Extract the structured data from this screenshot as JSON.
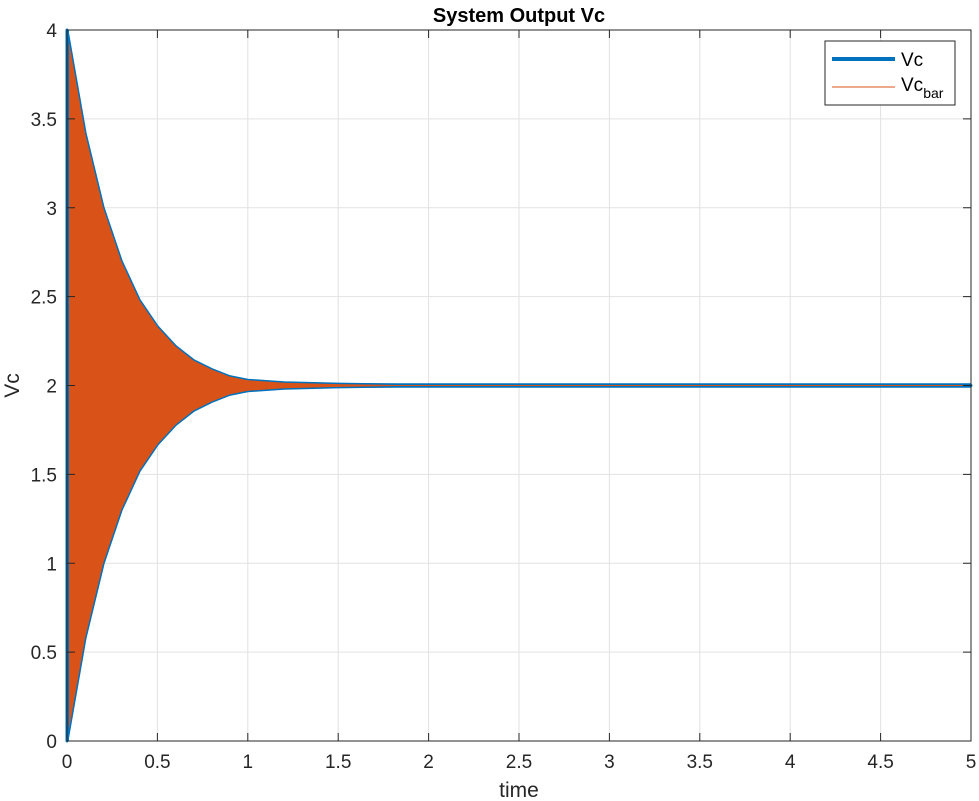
{
  "chart_data": {
    "type": "line",
    "title": "System Output Vc",
    "xlabel": "time",
    "ylabel": "Vc",
    "xlim": [
      0,
      5
    ],
    "ylim": [
      0,
      4
    ],
    "xticks": [
      0,
      0.5,
      1,
      1.5,
      2,
      2.5,
      3,
      3.5,
      4,
      4.5,
      5
    ],
    "yticks": [
      0,
      0.5,
      1,
      1.5,
      2,
      2.5,
      3,
      3.5,
      4
    ],
    "xtick_labels": [
      "0",
      "0.5",
      "1",
      "1.5",
      "2",
      "2.5",
      "3",
      "3.5",
      "4",
      "4.5",
      "5"
    ],
    "ytick_labels": [
      "0",
      "0.5",
      "1",
      "1.5",
      "2",
      "2.5",
      "3",
      "3.5",
      "4"
    ],
    "grid": true,
    "legend_position": "top-right",
    "colors": {
      "vc": "#0072BD",
      "vc_bar": "#D95319"
    },
    "series": [
      {
        "name": "Vc",
        "label_base": "Vc",
        "label_sub": "",
        "envelope": {
          "t": [
            0,
            0.1,
            0.2,
            0.3,
            0.4,
            0.5,
            0.6,
            0.7,
            0.8,
            0.9,
            1.0,
            1.2,
            1.5,
            2.0,
            3.0,
            5.0
          ],
          "upper": [
            4.0,
            3.42,
            3.0,
            2.7,
            2.48,
            2.33,
            2.22,
            2.14,
            2.09,
            2.05,
            2.03,
            2.015,
            2.008,
            2.0,
            2.0,
            2.0
          ],
          "lower": [
            0.0,
            0.58,
            1.0,
            1.3,
            1.52,
            1.67,
            1.78,
            1.86,
            1.91,
            1.95,
            1.97,
            1.985,
            1.992,
            2.0,
            2.0,
            2.0
          ]
        },
        "steady_value": 2.0
      },
      {
        "name": "Vc_bar",
        "label_base": "Vc",
        "label_sub": "bar",
        "envelope": {
          "t": [
            0,
            0.1,
            0.2,
            0.3,
            0.4,
            0.5,
            0.6,
            0.7,
            0.8,
            0.9,
            1.0,
            1.2,
            1.5,
            2.0,
            3.0,
            5.0
          ],
          "upper": [
            4.0,
            3.42,
            3.0,
            2.7,
            2.48,
            2.33,
            2.22,
            2.14,
            2.09,
            2.05,
            2.03,
            2.015,
            2.008,
            2.0,
            2.0,
            2.0
          ],
          "lower": [
            0.0,
            0.58,
            1.0,
            1.3,
            1.52,
            1.67,
            1.78,
            1.86,
            1.91,
            1.95,
            1.97,
            1.985,
            1.992,
            2.0,
            2.0,
            2.0
          ]
        },
        "steady_value": 2.0
      }
    ]
  }
}
